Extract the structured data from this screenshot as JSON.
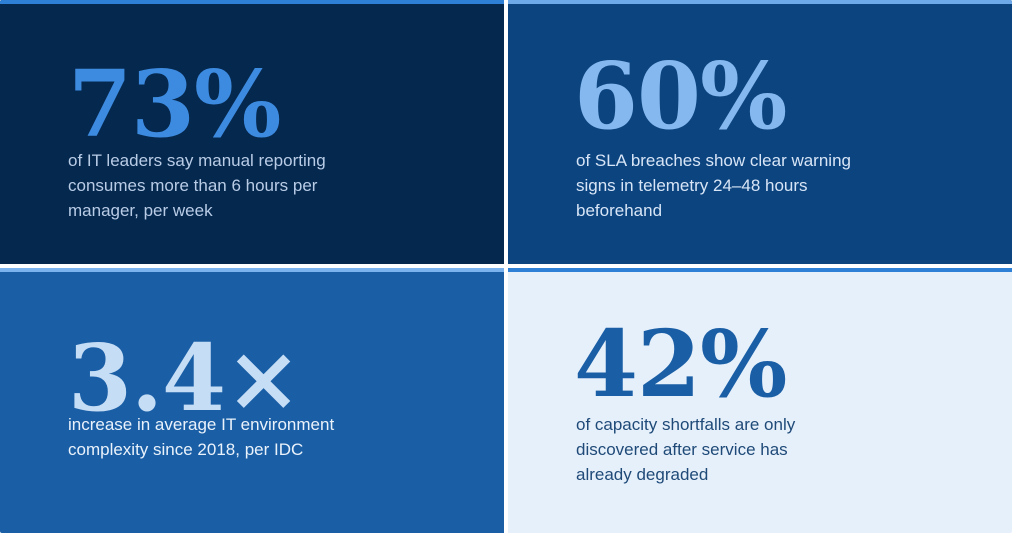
{
  "stats": [
    {
      "value": "73%",
      "description": "of IT leaders say manual reporting consumes more than 6 hours per manager, per week",
      "colors": {
        "background": "#05284f",
        "accent": "#2e80d6",
        "value": "#3d8be0",
        "text": "#b9cce6"
      }
    },
    {
      "value": "60%",
      "description": "of SLA breaches show clear warning signs in telemetry 24–48 hours beforehand",
      "colors": {
        "background": "#0c4480",
        "accent": "#6ea9ea",
        "value": "#84b8ee",
        "text": "#d7e5f6"
      }
    },
    {
      "value": "3.4×",
      "description": "increase in average IT environment complexity since 2018, per IDC",
      "colors": {
        "background": "#1a5fa6",
        "accent": "#7bb3ee",
        "value": "#c6ddf6",
        "text": "#eaf2fb"
      }
    },
    {
      "value": "42%",
      "description": "of capacity shortfalls are only discovered after service has already degraded",
      "colors": {
        "background": "#e6f0fb",
        "accent": "#2e80d6",
        "value": "#1a5fa6",
        "text": "#1f4a78"
      }
    }
  ]
}
